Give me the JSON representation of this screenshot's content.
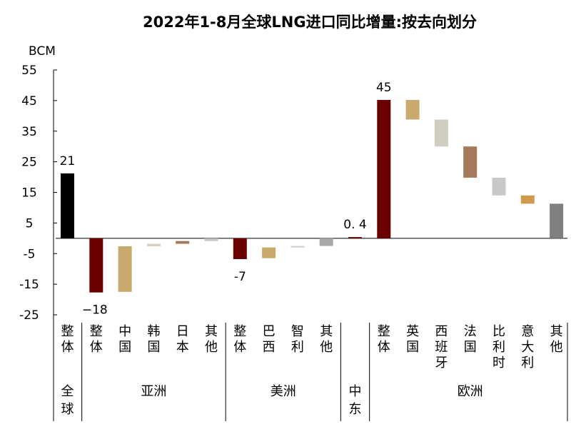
{
  "chart_data": {
    "type": "bar",
    "subtype": "waterfall",
    "title": "2022年1-8月全球LNG进口同比增量:按去向划分",
    "ylabel": "BCM",
    "ylim": [
      -25,
      55
    ],
    "yticks": [
      55,
      45,
      35,
      25,
      15,
      5,
      -5,
      -15,
      -25
    ],
    "grid": false,
    "legend": "none",
    "categories": [
      "整体",
      "整体",
      "中国",
      "韩国",
      "日本",
      "其他",
      "整体",
      "巴西",
      "智利",
      "其他",
      "",
      "整体",
      "英国",
      "西班牙",
      "法国",
      "比利时",
      "意大利",
      "其他"
    ],
    "groups": [
      {
        "name": "全球",
        "members": [
          0
        ]
      },
      {
        "name": "亚洲",
        "members": [
          1,
          2,
          3,
          4,
          5
        ]
      },
      {
        "name": "美洲",
        "members": [
          6,
          7,
          8,
          9
        ]
      },
      {
        "name": "中东",
        "members": [
          10
        ]
      },
      {
        "name": "欧洲",
        "members": [
          11,
          12,
          13,
          14,
          15,
          16,
          17
        ]
      }
    ],
    "bars": [
      {
        "category": "整体",
        "group": "全球",
        "start": 0,
        "end": 21.2,
        "color": "#000000",
        "data_label": "21"
      },
      {
        "category": "整体",
        "group": "亚洲",
        "start": 0,
        "end": -17.7,
        "color": "#6b0000",
        "data_label": "−18"
      },
      {
        "category": "中国",
        "group": "亚洲",
        "start": -2.6,
        "end": -17.5,
        "color": "#c9a96c",
        "data_label": ""
      },
      {
        "category": "韩国",
        "group": "亚洲",
        "start": -1.8,
        "end": -2.6,
        "color": "#d8d0c0",
        "data_label": ""
      },
      {
        "category": "日本",
        "group": "亚洲",
        "start": -0.9,
        "end": -1.8,
        "color": "#a57a5a",
        "data_label": ""
      },
      {
        "category": "其他",
        "group": "亚洲",
        "start": 0,
        "end": -0.9,
        "color": "#c4c4c4",
        "data_label": ""
      },
      {
        "category": "整体",
        "group": "美洲",
        "start": 0,
        "end": -6.8,
        "color": "#6b0000",
        "data_label": "-7"
      },
      {
        "category": "巴西",
        "group": "美洲",
        "start": -3.0,
        "end": -6.5,
        "color": "#c9a96c",
        "data_label": ""
      },
      {
        "category": "智利",
        "group": "美洲",
        "start": -2.5,
        "end": -3.0,
        "color": "#d0d0d0",
        "data_label": ""
      },
      {
        "category": "其他",
        "group": "美洲",
        "start": 0,
        "end": -2.5,
        "color": "#a8a8a8",
        "data_label": ""
      },
      {
        "category": "",
        "group": "中东",
        "start": 0,
        "end": 0.4,
        "color": "#6b0000",
        "data_label": "0. 4"
      },
      {
        "category": "整体",
        "group": "欧洲",
        "start": 0,
        "end": 45.2,
        "color": "#6b0000",
        "data_label": "45"
      },
      {
        "category": "英国",
        "group": "欧洲",
        "start": 45.2,
        "end": 38.8,
        "color": "#c9a96c",
        "data_label": ""
      },
      {
        "category": "西班牙",
        "group": "欧洲",
        "start": 38.8,
        "end": 30.0,
        "color": "#d0cec0",
        "data_label": ""
      },
      {
        "category": "法国",
        "group": "欧洲",
        "start": 30.0,
        "end": 19.8,
        "color": "#a57a5a",
        "data_label": ""
      },
      {
        "category": "比利时",
        "group": "欧洲",
        "start": 19.8,
        "end": 14.0,
        "color": "#c8c8c8",
        "data_label": ""
      },
      {
        "category": "意大利",
        "group": "欧洲",
        "start": 14.0,
        "end": 11.3,
        "color": "#d09a4e",
        "data_label": ""
      },
      {
        "category": "其他",
        "group": "欧洲",
        "start": 11.3,
        "end": 0,
        "color": "#808080",
        "data_label": ""
      }
    ]
  }
}
